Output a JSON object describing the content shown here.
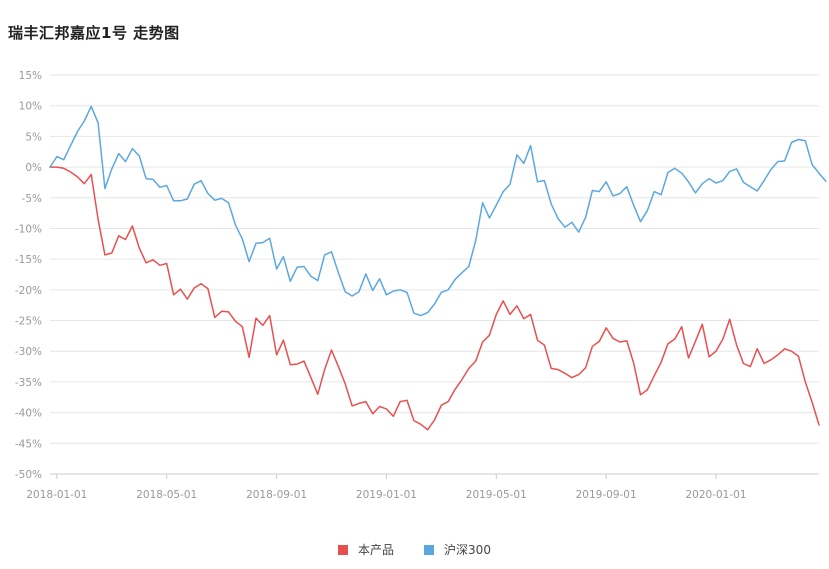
{
  "title": "瑞丰汇邦嘉应1号 走势图",
  "chart_data": {
    "type": "line",
    "title": "瑞丰汇邦嘉应1号 走势图",
    "xlabel": "",
    "ylabel": "",
    "ylim": [
      -50,
      15
    ],
    "y_ticks": [
      "15%",
      "10%",
      "5%",
      "0%",
      "-5%",
      "-10%",
      "-15%",
      "-20%",
      "-25%",
      "-30%",
      "-35%",
      "-40%",
      "-45%",
      "-50%"
    ],
    "y_tick_values": [
      15,
      10,
      5,
      0,
      -5,
      -10,
      -15,
      -20,
      -25,
      -30,
      -35,
      -40,
      -45,
      -50
    ],
    "x_ticks": [
      "2018-01-01",
      "2018-05-01",
      "2018-09-01",
      "2019-01-01",
      "2019-05-01",
      "2019-09-01",
      "2020-01-01"
    ],
    "x_tick_index": [
      1,
      17,
      33,
      49,
      65,
      81,
      97
    ],
    "grid": true,
    "legend_position": "bottom-center",
    "series": [
      {
        "name": "本产品",
        "color": "#e8504f",
        "values": [
          0,
          0,
          -0.2,
          -0.8,
          -1.6,
          -2.7,
          -1.2,
          -8.5,
          -14.3,
          -14,
          -11.2,
          -11.8,
          -9.6,
          -13.2,
          -15.6,
          -15.1,
          -16,
          -15.7,
          -20.8,
          -19.9,
          -21.5,
          -19.7,
          -19,
          -19.8,
          -24.5,
          -23.5,
          -23.6,
          -25.1,
          -26,
          -31,
          -24.6,
          -25.8,
          -24.2,
          -30.6,
          -28.2,
          -32.2,
          -32.1,
          -31.6,
          -34.3,
          -37,
          -33,
          -29.8,
          -32.5,
          -35.3,
          -38.9,
          -38.5,
          -38.2,
          -40.2,
          -39,
          -39.4,
          -40.6,
          -38.2,
          -38,
          -41.3,
          -41.9,
          -42.8,
          -41.2,
          -38.8,
          -38.2,
          -36.2,
          -34.6,
          -32.8,
          -31.6,
          -28.5,
          -27.4,
          -24,
          -21.8,
          -24,
          -22.6,
          -24.7,
          -24,
          -28.2,
          -29,
          -32.8,
          -33,
          -33.6,
          -34.3,
          -33.8,
          -32.7,
          -29.2,
          -28.4,
          -26.2,
          -27.9,
          -28.5,
          -28.3,
          -31.9,
          -37.1,
          -36.3,
          -34,
          -31.8,
          -28.8,
          -28,
          -26,
          -31.1,
          -28.4,
          -25.6,
          -30.9,
          -30,
          -28,
          -24.8,
          -29,
          -32,
          -32.5,
          -29.6,
          -32,
          -31.4,
          -30.6,
          -29.6,
          -30,
          -30.8,
          -35,
          -38.3,
          -42
        ]
      },
      {
        "name": "沪深300",
        "color": "#5ba8e0",
        "values": [
          0,
          1.7,
          1.2,
          3.5,
          5.8,
          7.5,
          9.9,
          7.2,
          -3.5,
          -0.3,
          2.2,
          0.9,
          3,
          1.8,
          -1.9,
          -2,
          -3.3,
          -3,
          -5.5,
          -5.5,
          -5.2,
          -2.8,
          -2.2,
          -4.3,
          -5.4,
          -5.1,
          -5.8,
          -9.4,
          -11.7,
          -15.4,
          -12.4,
          -12.3,
          -11.6,
          -16.6,
          -14.6,
          -18.6,
          -16.3,
          -16.2,
          -17.8,
          -18.5,
          -14.3,
          -13.8,
          -17.2,
          -20.3,
          -21,
          -20.3,
          -17.4,
          -20.1,
          -18.2,
          -20.8,
          -20.2,
          -20,
          -20.4,
          -23.8,
          -24.2,
          -23.7,
          -22.3,
          -20.4,
          -20,
          -18.3,
          -17.2,
          -16.2,
          -12,
          -5.8,
          -8.3,
          -6.2,
          -4,
          -2.8,
          2,
          0.6,
          3.5,
          -2.4,
          -2.2,
          -6,
          -8.4,
          -9.8,
          -9,
          -10.6,
          -8.2,
          -3.8,
          -4,
          -2.4,
          -4.7,
          -4.3,
          -3.2,
          -6.2,
          -8.9,
          -7.1,
          -4,
          -4.5,
          -0.9,
          -0.2,
          -1,
          -2.4,
          -4.2,
          -2.7,
          -1.9,
          -2.6,
          -2.2,
          -0.7,
          -0.3,
          -2.5,
          -3.2,
          -3.9,
          -2.2,
          -0.4,
          0.9,
          1,
          4,
          4.5,
          4.3,
          0.4,
          -1,
          -2.3
        ]
      }
    ]
  }
}
